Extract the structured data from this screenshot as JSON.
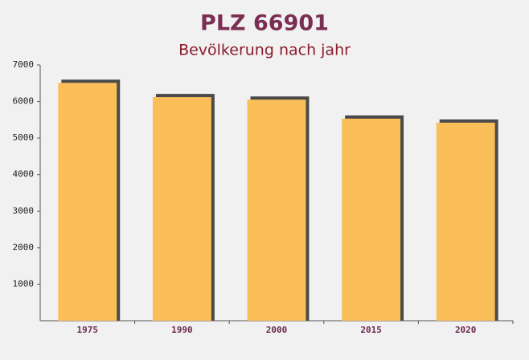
{
  "chart_data": {
    "type": "bar",
    "title": "PLZ 66901",
    "subtitle": "Bevölkerung nach jahr",
    "categories": [
      "1975",
      "1990",
      "2000",
      "2015",
      "2020"
    ],
    "values": [
      6510,
      6120,
      6050,
      5530,
      5420
    ],
    "color": "#fbbf5a",
    "ylim": [
      0,
      7000
    ],
    "yticks": [
      1000,
      2000,
      3000,
      4000,
      5000,
      6000,
      7000
    ],
    "grid": false
  }
}
